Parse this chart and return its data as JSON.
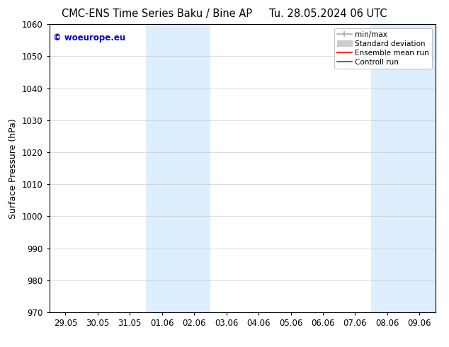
{
  "title_left": "CMC-ENS Time Series Baku / Bine AP",
  "title_right": "Tu. 28.05.2024 06 UTC",
  "ylabel": "Surface Pressure (hPa)",
  "ylim": [
    970,
    1060
  ],
  "yticks": [
    970,
    980,
    990,
    1000,
    1010,
    1020,
    1030,
    1040,
    1050,
    1060
  ],
  "xtick_labels": [
    "29.05",
    "30.05",
    "31.05",
    "01.06",
    "02.06",
    "03.06",
    "04.06",
    "05.06",
    "06.06",
    "07.06",
    "08.06",
    "09.06"
  ],
  "xtick_positions": [
    0,
    1,
    2,
    3,
    4,
    5,
    6,
    7,
    8,
    9,
    10,
    11
  ],
  "xlim": [
    -0.5,
    11.5
  ],
  "shaded_regions": [
    {
      "x_start": 2.5,
      "x_end": 4.5,
      "color": "#ddeeff"
    },
    {
      "x_start": 9.5,
      "x_end": 11.5,
      "color": "#ddeeff"
    }
  ],
  "watermark_text": "© woeurope.eu",
  "watermark_color": "#0000cc",
  "legend_entries": [
    {
      "label": "min/max",
      "color": "#aaaaaa",
      "lw": 1.5
    },
    {
      "label": "Standard deviation",
      "color": "#cccccc",
      "lw": 8
    },
    {
      "label": "Ensemble mean run",
      "color": "#ff0000",
      "lw": 1.5
    },
    {
      "label": "Controll run",
      "color": "#007700",
      "lw": 1.5
    }
  ],
  "bg_color": "#ffffff",
  "grid_color": "#cccccc",
  "title_fontsize": 10.5,
  "tick_fontsize": 8.5,
  "ylabel_fontsize": 9,
  "legend_fontsize": 7.5
}
